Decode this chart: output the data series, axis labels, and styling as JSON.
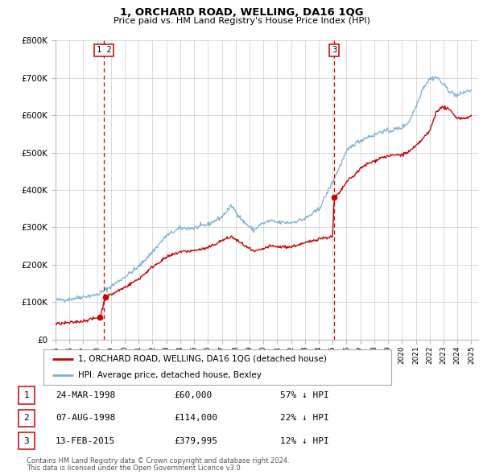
{
  "title": "1, ORCHARD ROAD, WELLING, DA16 1QG",
  "subtitle": "Price paid vs. HM Land Registry's House Price Index (HPI)",
  "legend_line1": "1, ORCHARD ROAD, WELLING, DA16 1QG (detached house)",
  "legend_line2": "HPI: Average price, detached house, Bexley",
  "table_rows": [
    {
      "num": "1",
      "date": "24-MAR-1998",
      "price": "£60,000",
      "hpi": "57% ↓ HPI"
    },
    {
      "num": "2",
      "date": "07-AUG-1998",
      "price": "£114,000",
      "hpi": "22% ↓ HPI"
    },
    {
      "num": "3",
      "date": "13-FEB-2015",
      "price": "£379,995",
      "hpi": "12% ↓ HPI"
    }
  ],
  "footer1": "Contains HM Land Registry data © Crown copyright and database right 2024.",
  "footer2": "This data is licensed under the Open Government Licence v3.0.",
  "red_line_color": "#cc0000",
  "blue_line_color": "#7bafd4",
  "grid_color": "#cccccc",
  "vline_color": "#cc0000",
  "marker_color": "#cc0000",
  "background_color": "#ffffff",
  "sale_points": [
    {
      "year": 1998.22,
      "value": 60000
    },
    {
      "year": 1998.6,
      "value": 114000
    },
    {
      "year": 2015.11,
      "value": 379995
    }
  ],
  "vline1_x": 1998.5,
  "vline2_x": 2015.11,
  "ylim": [
    0,
    800000
  ],
  "yticks": [
    0,
    100000,
    200000,
    300000,
    400000,
    500000,
    600000,
    700000,
    800000
  ],
  "ytick_labels": [
    "£0",
    "£100K",
    "£200K",
    "£300K",
    "£400K",
    "£500K",
    "£600K",
    "£700K",
    "£800K"
  ],
  "xlim_start": 1995.0,
  "xlim_end": 2025.5,
  "hpi_anchors": [
    [
      1995.0,
      105000
    ],
    [
      1996.0,
      108000
    ],
    [
      1997.0,
      115000
    ],
    [
      1998.0,
      120000
    ],
    [
      1999.0,
      142000
    ],
    [
      2000.0,
      168000
    ],
    [
      2001.0,
      195000
    ],
    [
      2002.0,
      235000
    ],
    [
      2003.0,
      278000
    ],
    [
      2004.0,
      298000
    ],
    [
      2005.0,
      298000
    ],
    [
      2006.0,
      308000
    ],
    [
      2007.0,
      328000
    ],
    [
      2007.7,
      358000
    ],
    [
      2008.5,
      318000
    ],
    [
      2009.3,
      292000
    ],
    [
      2009.8,
      308000
    ],
    [
      2010.5,
      318000
    ],
    [
      2011.0,
      313000
    ],
    [
      2012.0,
      313000
    ],
    [
      2013.0,
      323000
    ],
    [
      2014.0,
      348000
    ],
    [
      2015.0,
      422000
    ],
    [
      2016.0,
      502000
    ],
    [
      2016.5,
      522000
    ],
    [
      2017.0,
      532000
    ],
    [
      2017.5,
      542000
    ],
    [
      2018.0,
      547000
    ],
    [
      2018.5,
      557000
    ],
    [
      2019.0,
      557000
    ],
    [
      2019.5,
      562000
    ],
    [
      2020.0,
      567000
    ],
    [
      2020.5,
      582000
    ],
    [
      2021.0,
      622000
    ],
    [
      2021.5,
      672000
    ],
    [
      2022.0,
      697000
    ],
    [
      2022.5,
      702000
    ],
    [
      2023.0,
      682000
    ],
    [
      2023.5,
      662000
    ],
    [
      2024.0,
      652000
    ],
    [
      2024.5,
      662000
    ],
    [
      2025.0,
      667000
    ]
  ],
  "red_anchors": [
    [
      1995.0,
      42000
    ],
    [
      1996.0,
      45000
    ],
    [
      1997.0,
      50000
    ],
    [
      1998.22,
      60000
    ],
    [
      1998.6,
      114000
    ],
    [
      1999.0,
      120000
    ],
    [
      2000.0,
      140000
    ],
    [
      2001.0,
      162000
    ],
    [
      2002.0,
      195000
    ],
    [
      2003.0,
      220000
    ],
    [
      2004.0,
      235000
    ],
    [
      2005.0,
      238000
    ],
    [
      2006.0,
      245000
    ],
    [
      2007.0,
      265000
    ],
    [
      2007.7,
      275000
    ],
    [
      2008.5,
      255000
    ],
    [
      2009.3,
      235000
    ],
    [
      2009.8,
      240000
    ],
    [
      2010.5,
      250000
    ],
    [
      2011.0,
      248000
    ],
    [
      2012.0,
      248000
    ],
    [
      2013.0,
      258000
    ],
    [
      2014.0,
      270000
    ],
    [
      2015.0,
      275000
    ],
    [
      2015.11,
      379995
    ],
    [
      2015.5,
      392000
    ],
    [
      2016.0,
      422000
    ],
    [
      2016.5,
      437000
    ],
    [
      2017.0,
      457000
    ],
    [
      2017.5,
      470000
    ],
    [
      2018.0,
      477000
    ],
    [
      2018.5,
      487000
    ],
    [
      2019.0,
      490000
    ],
    [
      2019.5,
      494000
    ],
    [
      2020.0,
      494000
    ],
    [
      2020.5,
      502000
    ],
    [
      2021.0,
      517000
    ],
    [
      2021.5,
      537000
    ],
    [
      2022.0,
      557000
    ],
    [
      2022.5,
      612000
    ],
    [
      2023.0,
      622000
    ],
    [
      2023.5,
      612000
    ],
    [
      2024.0,
      592000
    ],
    [
      2024.5,
      592000
    ],
    [
      2025.0,
      597000
    ]
  ]
}
